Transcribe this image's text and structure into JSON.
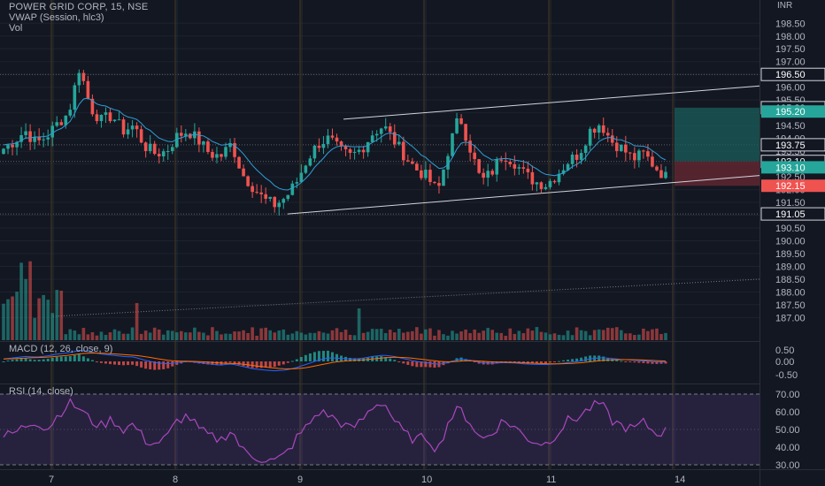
{
  "header": {
    "symbol": "POWER GRID CORP, 15, NSE",
    "vwap_label": "VWAP (Session, hlc3)",
    "vol_label": "Vol",
    "currency": "INR"
  },
  "price_axis": {
    "min": 186.6,
    "max": 199.2,
    "ticks": [
      "198.50",
      "198.00",
      "197.50",
      "197.00",
      "196.50",
      "196.00",
      "195.50",
      "195.00",
      "194.50",
      "194.00",
      "193.50",
      "193.00",
      "192.50",
      "192.00",
      "191.50",
      "191.00",
      "190.50",
      "190.00",
      "189.50",
      "189.00",
      "188.50",
      "188.00",
      "187.50",
      "187.00"
    ],
    "tags": [
      {
        "label": "196.50",
        "value": 196.5,
        "style": "outline"
      },
      {
        "label": "195.20",
        "value": 195.2,
        "style": "outline"
      },
      {
        "label": "195.20",
        "value": 195.05,
        "style": "teal"
      },
      {
        "label": "193.75",
        "value": 193.75,
        "style": "outline"
      },
      {
        "label": "193.10",
        "value": 193.1,
        "style": "outline"
      },
      {
        "label": "193.10",
        "value": 192.87,
        "style": "teal"
      },
      {
        "label": "192.15",
        "value": 192.15,
        "style": "red"
      },
      {
        "label": "191.05",
        "value": 191.05,
        "style": "outline"
      }
    ]
  },
  "macd": {
    "label": "MACD (12, 26, close, 9)",
    "ticks": [
      "0.50",
      "0.00",
      "-0.50"
    ]
  },
  "rsi": {
    "label": "RSI (14, close)",
    "ticks": [
      "70.00",
      "60.00",
      "50.00",
      "40.00",
      "30.00"
    ]
  },
  "time_axis": {
    "labels": [
      "7",
      "8",
      "9",
      "10",
      "11",
      "14"
    ]
  },
  "chart_data": {
    "type": "candlestick",
    "instrument": "POWER GRID CORP",
    "interval": "15",
    "exchange": "NSE",
    "sessions": [
      "7",
      "8",
      "9",
      "10",
      "11"
    ],
    "trend_channel": {
      "upper_start": 194.75,
      "upper_end": 195.2,
      "lower_start": 191.05,
      "lower_end": 192.6
    },
    "long_position": {
      "target": 195.2,
      "entry": 193.1,
      "stop": 192.15
    },
    "close_seed": [
      193.6,
      193.9,
      194.3,
      193.8,
      194.1,
      194.6,
      195.0,
      196.8,
      195.2,
      194.7,
      194.9,
      194.3,
      194.5,
      193.7,
      193.4,
      193.5,
      194.1,
      194.3,
      193.9,
      193.4,
      193.3,
      193.8,
      192.6,
      192.1,
      191.6,
      191.4,
      191.7,
      192.3,
      193.2,
      193.8,
      194.0,
      193.5,
      193.3,
      193.6,
      194.2,
      194.5,
      193.9,
      193.3,
      192.8,
      192.5,
      191.9,
      193.6,
      194.9,
      193.6,
      192.3,
      192.7,
      193.4,
      193.1,
      192.6,
      192.3,
      192.2,
      192.6,
      193.1,
      193.4,
      194.3,
      194.6,
      193.9,
      193.6,
      193.2,
      193.4,
      192.9,
      192.5
    ],
    "rsi_seed": [
      46,
      48,
      52,
      55,
      50,
      58,
      65,
      62,
      55,
      52,
      56,
      50,
      53,
      44,
      42,
      45,
      55,
      58,
      50,
      46,
      44,
      50,
      38,
      35,
      33,
      32,
      36,
      45,
      52,
      60,
      58,
      54,
      50,
      55,
      63,
      66,
      55,
      47,
      44,
      46,
      38,
      55,
      62,
      54,
      44,
      48,
      55,
      52,
      46,
      43,
      42,
      48,
      55,
      57,
      62,
      65,
      55,
      52,
      50,
      54,
      48,
      49
    ],
    "macd_seed": [
      0.1,
      0.15,
      0.2,
      0.18,
      0.22,
      0.3,
      0.35,
      0.45,
      0.38,
      0.3,
      0.25,
      0.2,
      0.18,
      0.05,
      -0.05,
      -0.1,
      -0.05,
      0.0,
      -0.05,
      -0.1,
      -0.15,
      -0.1,
      -0.2,
      -0.3,
      -0.35,
      -0.38,
      -0.35,
      -0.25,
      -0.1,
      0.05,
      0.15,
      0.12,
      0.1,
      0.12,
      0.2,
      0.25,
      0.2,
      0.1,
      0.0,
      -0.05,
      -0.12,
      -0.05,
      0.1,
      0.05,
      -0.05,
      -0.08,
      -0.05,
      -0.06,
      -0.1,
      -0.12,
      -0.13,
      -0.1,
      -0.05,
      0.0,
      0.1,
      0.15,
      0.12,
      0.08,
      0.05,
      0.02,
      -0.02,
      -0.03
    ]
  }
}
